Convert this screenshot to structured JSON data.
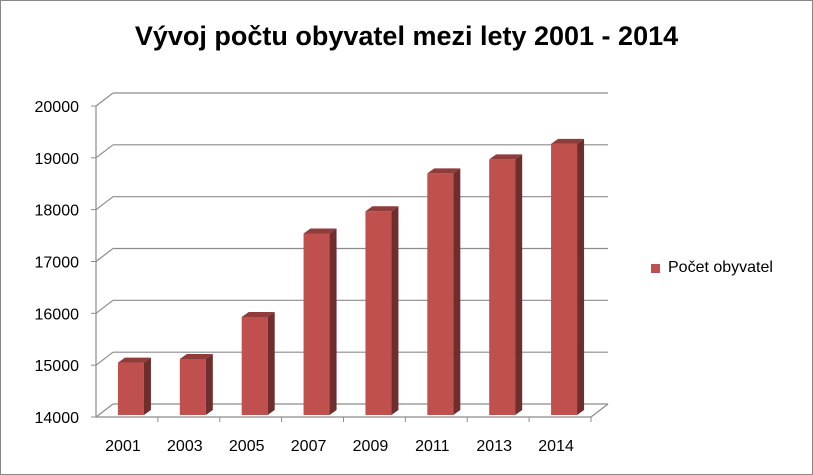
{
  "chart_data": {
    "type": "bar",
    "title": "Vývoj počtu obyvatel mezi lety 2001 - 2014",
    "xlabel": "",
    "ylabel": "",
    "categories": [
      "2001",
      "2003",
      "2005",
      "2007",
      "2009",
      "2011",
      "2013",
      "2014"
    ],
    "series": [
      {
        "name": "Počet obyvatel",
        "values": [
          15050,
          15120,
          15930,
          17540,
          17970,
          18700,
          18970,
          19270
        ],
        "color": "#C0504D"
      }
    ],
    "ylim": [
      14000,
      20000
    ],
    "yticks": [
      "14000",
      "15000",
      "16000",
      "17000",
      "18000",
      "19000",
      "20000"
    ],
    "grid": true,
    "three_d": true,
    "legend_position": "right"
  }
}
